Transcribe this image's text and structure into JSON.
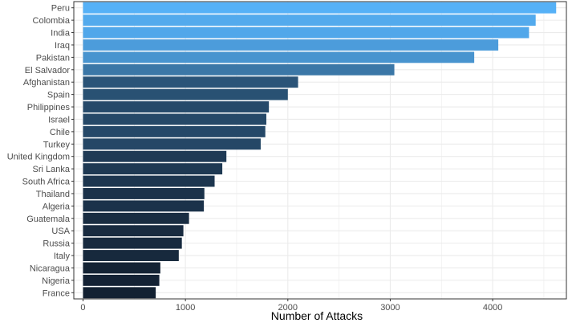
{
  "chart_data": {
    "type": "bar",
    "orientation": "horizontal",
    "xlabel": "Number of Attacks",
    "ylabel": "",
    "xlim": [
      -90,
      4720
    ],
    "x_ticks": [
      0,
      1000,
      2000,
      3000,
      4000
    ],
    "grid": true,
    "legend": "none",
    "categories": [
      "Peru",
      "Colombia",
      "India",
      "Iraq",
      "Pakistan",
      "El Salvador",
      "Afghanistan",
      "Spain",
      "Philippines",
      "Israel",
      "Chile",
      "Turkey",
      "United Kingdom",
      "Sri Lanka",
      "South Africa",
      "Thailand",
      "Algeria",
      "Guatemala",
      "USA",
      "Russia",
      "Italy",
      "Nicaragua",
      "Nigeria",
      "France"
    ],
    "values": [
      4620,
      4420,
      4355,
      4055,
      3820,
      3040,
      2100,
      2000,
      1815,
      1790,
      1780,
      1735,
      1400,
      1360,
      1285,
      1185,
      1180,
      1035,
      980,
      965,
      935,
      755,
      745,
      710
    ],
    "color_low": "#132132",
    "color_high": "#56B1F7",
    "panel_border_color": "#333333",
    "grid_color": "#ebebeb"
  }
}
